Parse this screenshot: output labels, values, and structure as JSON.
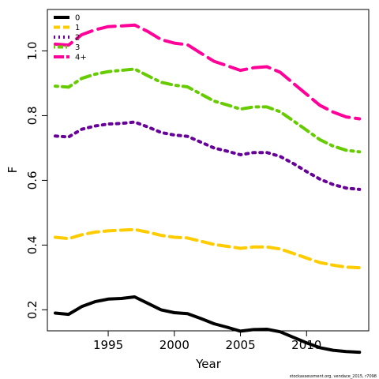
{
  "chart_data": {
    "type": "line",
    "xlabel": "Year",
    "ylabel": "F",
    "xlim": [
      1990.4,
      2014.7
    ],
    "ylim": [
      0.135,
      1.128
    ],
    "xticks": [
      1995,
      2000,
      2005,
      2010
    ],
    "yticks": [
      0.2,
      0.4,
      0.6,
      0.8,
      1.0
    ],
    "ytick_labels": [
      "0.2",
      "0.4",
      "0.6",
      "0.8",
      "1.0"
    ],
    "x": [
      1991,
      1992,
      1993,
      1994,
      1995,
      1996,
      1997,
      1998,
      1999,
      2000,
      2001,
      2002,
      2003,
      2004,
      2005,
      2006,
      2007,
      2008,
      2009,
      2010,
      2011,
      2012,
      2013,
      2014
    ],
    "legend_position": "top-left",
    "series": [
      {
        "name": "0",
        "color": "#000000",
        "dash": "solid",
        "values": [
          0.19,
          0.186,
          0.21,
          0.225,
          0.233,
          0.235,
          0.24,
          0.22,
          0.2,
          0.191,
          0.188,
          0.173,
          0.157,
          0.146,
          0.134,
          0.139,
          0.14,
          0.132,
          0.115,
          0.098,
          0.083,
          0.075,
          0.071,
          0.069
        ]
      },
      {
        "name": "1",
        "color": "#FFCC00",
        "dash": "dashed",
        "values": [
          0.424,
          0.42,
          0.432,
          0.44,
          0.444,
          0.446,
          0.448,
          0.44,
          0.43,
          0.424,
          0.422,
          0.412,
          0.402,
          0.396,
          0.39,
          0.394,
          0.394,
          0.388,
          0.374,
          0.36,
          0.346,
          0.338,
          0.332,
          0.33
        ]
      },
      {
        "name": "2",
        "color": "#660099",
        "dash": "dotted",
        "values": [
          0.737,
          0.734,
          0.758,
          0.768,
          0.774,
          0.776,
          0.78,
          0.765,
          0.748,
          0.74,
          0.736,
          0.718,
          0.7,
          0.69,
          0.679,
          0.686,
          0.686,
          0.674,
          0.652,
          0.627,
          0.604,
          0.587,
          0.576,
          0.572
        ]
      },
      {
        "name": "3",
        "color": "#66CC00",
        "dash": "dashdot",
        "values": [
          0.891,
          0.888,
          0.915,
          0.928,
          0.936,
          0.94,
          0.944,
          0.923,
          0.903,
          0.894,
          0.889,
          0.867,
          0.845,
          0.833,
          0.82,
          0.827,
          0.827,
          0.812,
          0.784,
          0.755,
          0.726,
          0.706,
          0.693,
          0.688
        ]
      },
      {
        "name": "4+",
        "color": "#FF0099",
        "dash": "longdash",
        "values": [
          1.021,
          1.018,
          1.05,
          1.065,
          1.075,
          1.077,
          1.08,
          1.06,
          1.035,
          1.024,
          1.019,
          0.993,
          0.968,
          0.954,
          0.94,
          0.948,
          0.951,
          0.934,
          0.9,
          0.866,
          0.832,
          0.811,
          0.796,
          0.79
        ]
      }
    ],
    "footnote": "stockassessment.org, vendace_2015, r7098"
  }
}
